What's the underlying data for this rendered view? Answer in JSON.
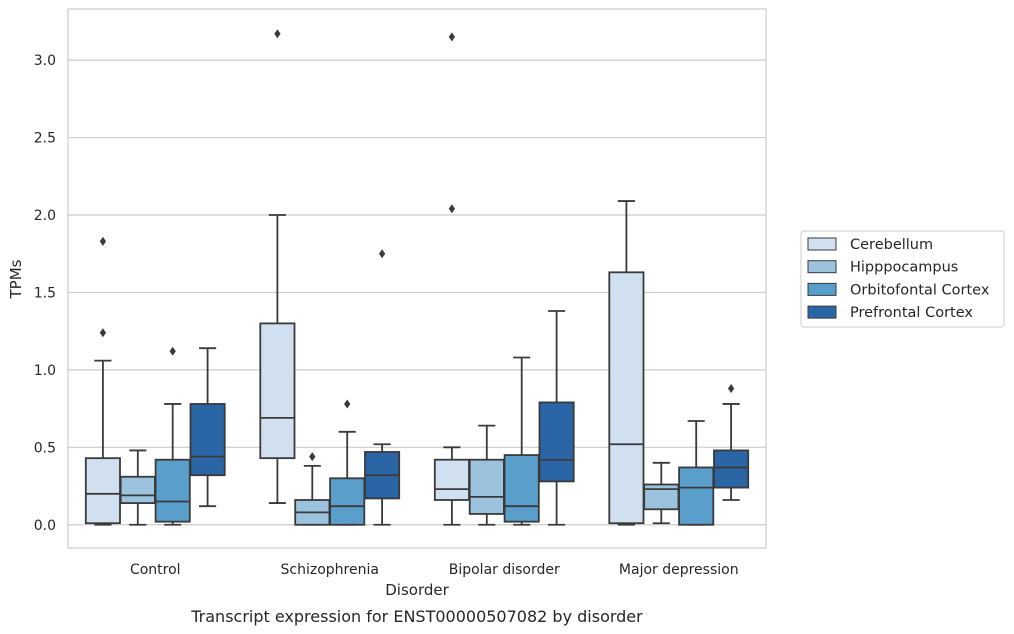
{
  "chart_data": {
    "type": "box",
    "xlabel": "Disorder",
    "ylabel": "TPMs",
    "caption": "Transcript expression for ENST00000507082 by disorder",
    "ylim": [
      -0.15,
      3.33
    ],
    "yticks": [
      0.0,
      0.5,
      1.0,
      1.5,
      2.0,
      2.5,
      3.0
    ],
    "ytick_labels": [
      "0.0",
      "0.5",
      "1.0",
      "1.5",
      "2.0",
      "2.5",
      "3.0"
    ],
    "grid": "horizontal",
    "legend_position": "right",
    "categories": [
      "Control",
      "Schizophrenia",
      "Bipolar disorder",
      "Major depression"
    ],
    "series": [
      {
        "name": "Cerebellum",
        "color": "#d0e0f0",
        "boxes": [
          {
            "whislo": 0.0,
            "q1": 0.01,
            "med": 0.2,
            "q3": 0.43,
            "whishi": 1.06,
            "fliers": [
              1.24,
              1.83
            ]
          },
          {
            "whislo": 0.14,
            "q1": 0.43,
            "med": 0.69,
            "q3": 1.3,
            "whishi": 2.0,
            "fliers": [
              3.17
            ]
          },
          {
            "whislo": 0.0,
            "q1": 0.16,
            "med": 0.23,
            "q3": 0.42,
            "whishi": 0.5,
            "fliers": [
              2.04,
              3.15
            ]
          },
          {
            "whislo": 0.0,
            "q1": 0.01,
            "med": 0.52,
            "q3": 1.63,
            "whishi": 2.09,
            "fliers": []
          }
        ]
      },
      {
        "name": "Hipppocampus",
        "color": "#9cc3dd",
        "boxes": [
          {
            "whislo": 0.0,
            "q1": 0.14,
            "med": 0.19,
            "q3": 0.31,
            "whishi": 0.48,
            "fliers": []
          },
          {
            "whislo": 0.0,
            "q1": 0.0,
            "med": 0.08,
            "q3": 0.16,
            "whishi": 0.38,
            "fliers": [
              0.44
            ]
          },
          {
            "whislo": 0.0,
            "q1": 0.07,
            "med": 0.18,
            "q3": 0.42,
            "whishi": 0.64,
            "fliers": []
          },
          {
            "whislo": 0.01,
            "q1": 0.1,
            "med": 0.23,
            "q3": 0.26,
            "whishi": 0.4,
            "fliers": []
          }
        ]
      },
      {
        "name": "Orbitofontal Cortex",
        "color": "#5a9ecc",
        "boxes": [
          {
            "whislo": 0.0,
            "q1": 0.02,
            "med": 0.15,
            "q3": 0.42,
            "whishi": 0.78,
            "fliers": [
              1.12
            ]
          },
          {
            "whislo": 0.0,
            "q1": 0.0,
            "med": 0.12,
            "q3": 0.3,
            "whishi": 0.6,
            "fliers": [
              0.78
            ]
          },
          {
            "whislo": 0.0,
            "q1": 0.02,
            "med": 0.12,
            "q3": 0.45,
            "whishi": 1.08,
            "fliers": []
          },
          {
            "whislo": 0.0,
            "q1": 0.0,
            "med": 0.24,
            "q3": 0.37,
            "whishi": 0.67,
            "fliers": []
          }
        ]
      },
      {
        "name": "Prefrontal Cortex",
        "color": "#2a66a6",
        "boxes": [
          {
            "whislo": 0.12,
            "q1": 0.32,
            "med": 0.44,
            "q3": 0.78,
            "whishi": 1.14,
            "fliers": []
          },
          {
            "whislo": 0.0,
            "q1": 0.17,
            "med": 0.32,
            "q3": 0.47,
            "whishi": 0.52,
            "fliers": [
              1.75
            ]
          },
          {
            "whislo": 0.0,
            "q1": 0.28,
            "med": 0.42,
            "q3": 0.79,
            "whishi": 1.38,
            "fliers": []
          },
          {
            "whislo": 0.16,
            "q1": 0.24,
            "med": 0.37,
            "q3": 0.48,
            "whishi": 0.78,
            "fliers": [
              0.88
            ]
          }
        ]
      }
    ]
  }
}
